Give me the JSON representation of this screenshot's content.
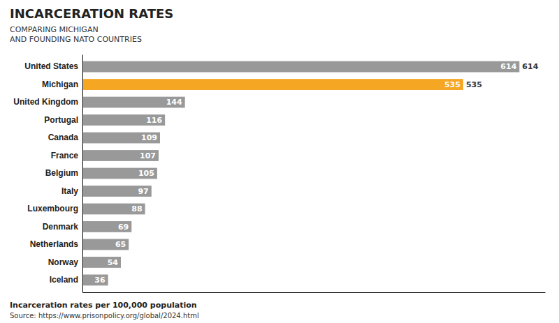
{
  "chart_data": {
    "type": "bar",
    "orientation": "horizontal",
    "title": "INCARCERATION RATES",
    "subtitle": "COMPARING MICHIGAN\nAND FOUNDING NATO COUNTRIES",
    "annotations": [
      "Incarceration rates per 100,000 population",
      "Source: https://www.prisonpolicy.org/global/2024.html"
    ],
    "categories": [
      "United States",
      "Michigan",
      "United Kingdom",
      "Portugal",
      "Canada",
      "France",
      "Belgium",
      "Italy",
      "Luxembourg",
      "Denmark",
      "Netherlands",
      "Norway",
      "Iceland"
    ],
    "values": [
      614,
      535,
      144,
      116,
      109,
      107,
      105,
      97,
      88,
      69,
      65,
      54,
      36
    ],
    "colors": [
      "#999999",
      "#F5A623",
      "#999999",
      "#999999",
      "#999999",
      "#999999",
      "#999999",
      "#999999",
      "#999999",
      "#999999",
      "#999999",
      "#999999",
      "#999999"
    ],
    "xlim": [
      0,
      650
    ],
    "data_labels": true,
    "tick_labels": "y",
    "grid": false
  }
}
